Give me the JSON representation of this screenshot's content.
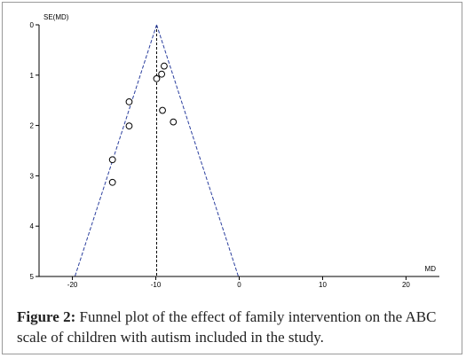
{
  "caption": {
    "label": "Figure 2:",
    "text": " Funnel plot of the effect of family intervention on the ABC scale of children with autism included in the study."
  },
  "chart_data": {
    "type": "scatter",
    "title": "",
    "xlabel": "MD",
    "ylabel": "SE(MD)",
    "xlim": [
      -24,
      24
    ],
    "ylim": [
      0,
      5
    ],
    "y_inverted": true,
    "x_ticks": [
      -20,
      -10,
      0,
      10,
      20
    ],
    "y_ticks": [
      0,
      1,
      2,
      3,
      4,
      5
    ],
    "x_tick_labels": [
      "-20",
      "-10",
      "0",
      "10",
      "20"
    ],
    "y_tick_labels": [
      "0",
      "1",
      "2",
      "3",
      "4",
      "5"
    ],
    "pooled_effect": -9.9,
    "funnel_limits_at_se5": [
      -19.7,
      -0.1
    ],
    "points": [
      {
        "x": -9.0,
        "y": 0.82
      },
      {
        "x": -9.3,
        "y": 0.98
      },
      {
        "x": -9.9,
        "y": 1.07
      },
      {
        "x": -13.2,
        "y": 1.53
      },
      {
        "x": -13.2,
        "y": 2.01
      },
      {
        "x": -9.2,
        "y": 1.7
      },
      {
        "x": -7.9,
        "y": 1.93
      },
      {
        "x": -15.2,
        "y": 2.68
      },
      {
        "x": -15.2,
        "y": 3.13
      }
    ],
    "colors": {
      "axis": "#000000",
      "funnel": "#2b3f9e",
      "center": "#000000",
      "marker": "#000000"
    },
    "grid": false
  }
}
